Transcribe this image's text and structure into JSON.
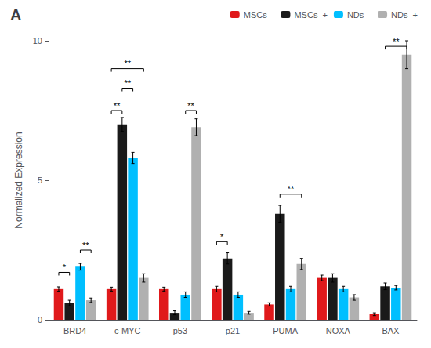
{
  "chart_data": {
    "type": "bar",
    "title": "A",
    "categories": [
      "BRD4",
      "c-MYC",
      "p53",
      "p21",
      "PUMA",
      "NOXA",
      "BAX"
    ],
    "series": [
      {
        "name": "MSCs  -",
        "color": "#e0191b",
        "values": [
          1.1,
          1.1,
          1.1,
          1.1,
          0.55,
          1.5,
          0.2
        ],
        "errors": [
          0.08,
          0.07,
          0.07,
          0.1,
          0.06,
          0.1,
          0.05
        ]
      },
      {
        "name": "MSCs  +",
        "color": "#1a1a1a",
        "values": [
          0.6,
          7.0,
          0.25,
          2.2,
          3.8,
          1.5,
          1.2
        ],
        "errors": [
          0.1,
          0.25,
          0.07,
          0.2,
          0.3,
          0.15,
          0.12
        ]
      },
      {
        "name": "NDs  -",
        "color": "#00bfff",
        "values": [
          1.9,
          5.8,
          0.9,
          0.9,
          1.1,
          1.1,
          1.15
        ],
        "errors": [
          0.12,
          0.2,
          0.1,
          0.1,
          0.1,
          0.1,
          0.08
        ]
      },
      {
        "name": "NDs  +",
        "color": "#b0b0b0",
        "values": [
          0.7,
          1.5,
          6.9,
          0.25,
          2.0,
          0.8,
          9.5
        ],
        "errors": [
          0.08,
          0.15,
          0.3,
          0.05,
          0.2,
          0.1,
          0.5
        ]
      }
    ],
    "ylabel": "Normalized Expression",
    "ylim": [
      0,
      10
    ],
    "yticks": [
      0,
      5,
      10
    ],
    "grid": false,
    "legend": "upper right",
    "annotations": [
      {
        "text": "*",
        "category": "BRD4",
        "from": "MSCs  -",
        "to": "MSCs  +",
        "y": 1.7
      },
      {
        "text": "**",
        "category": "BRD4",
        "from": "NDs  -",
        "to": "NDs  +",
        "y": 2.5
      },
      {
        "text": "**",
        "category": "c-MYC",
        "from": "MSCs  -",
        "to": "MSCs  +",
        "y": 7.5
      },
      {
        "text": "**",
        "category": "c-MYC",
        "from": "MSCs  +",
        "to": "NDs  -",
        "y": 8.3
      },
      {
        "text": "**",
        "category": "c-MYC",
        "from": "MSCs  -",
        "to": "NDs  +",
        "y": 9.0
      },
      {
        "text": "**",
        "category": "p53",
        "from": "NDs  -",
        "to": "NDs  +",
        "y": 7.5
      },
      {
        "text": "*",
        "category": "p21",
        "from": "MSCs  -",
        "to": "MSCs  +",
        "y": 2.8
      },
      {
        "text": "**",
        "category": "PUMA",
        "from": "MSCs  +",
        "to": "NDs  +",
        "y": 4.5
      },
      {
        "text": "**",
        "category": "BAX",
        "from": "MSCs  +",
        "to": "NDs  +",
        "y": 9.8
      }
    ]
  }
}
